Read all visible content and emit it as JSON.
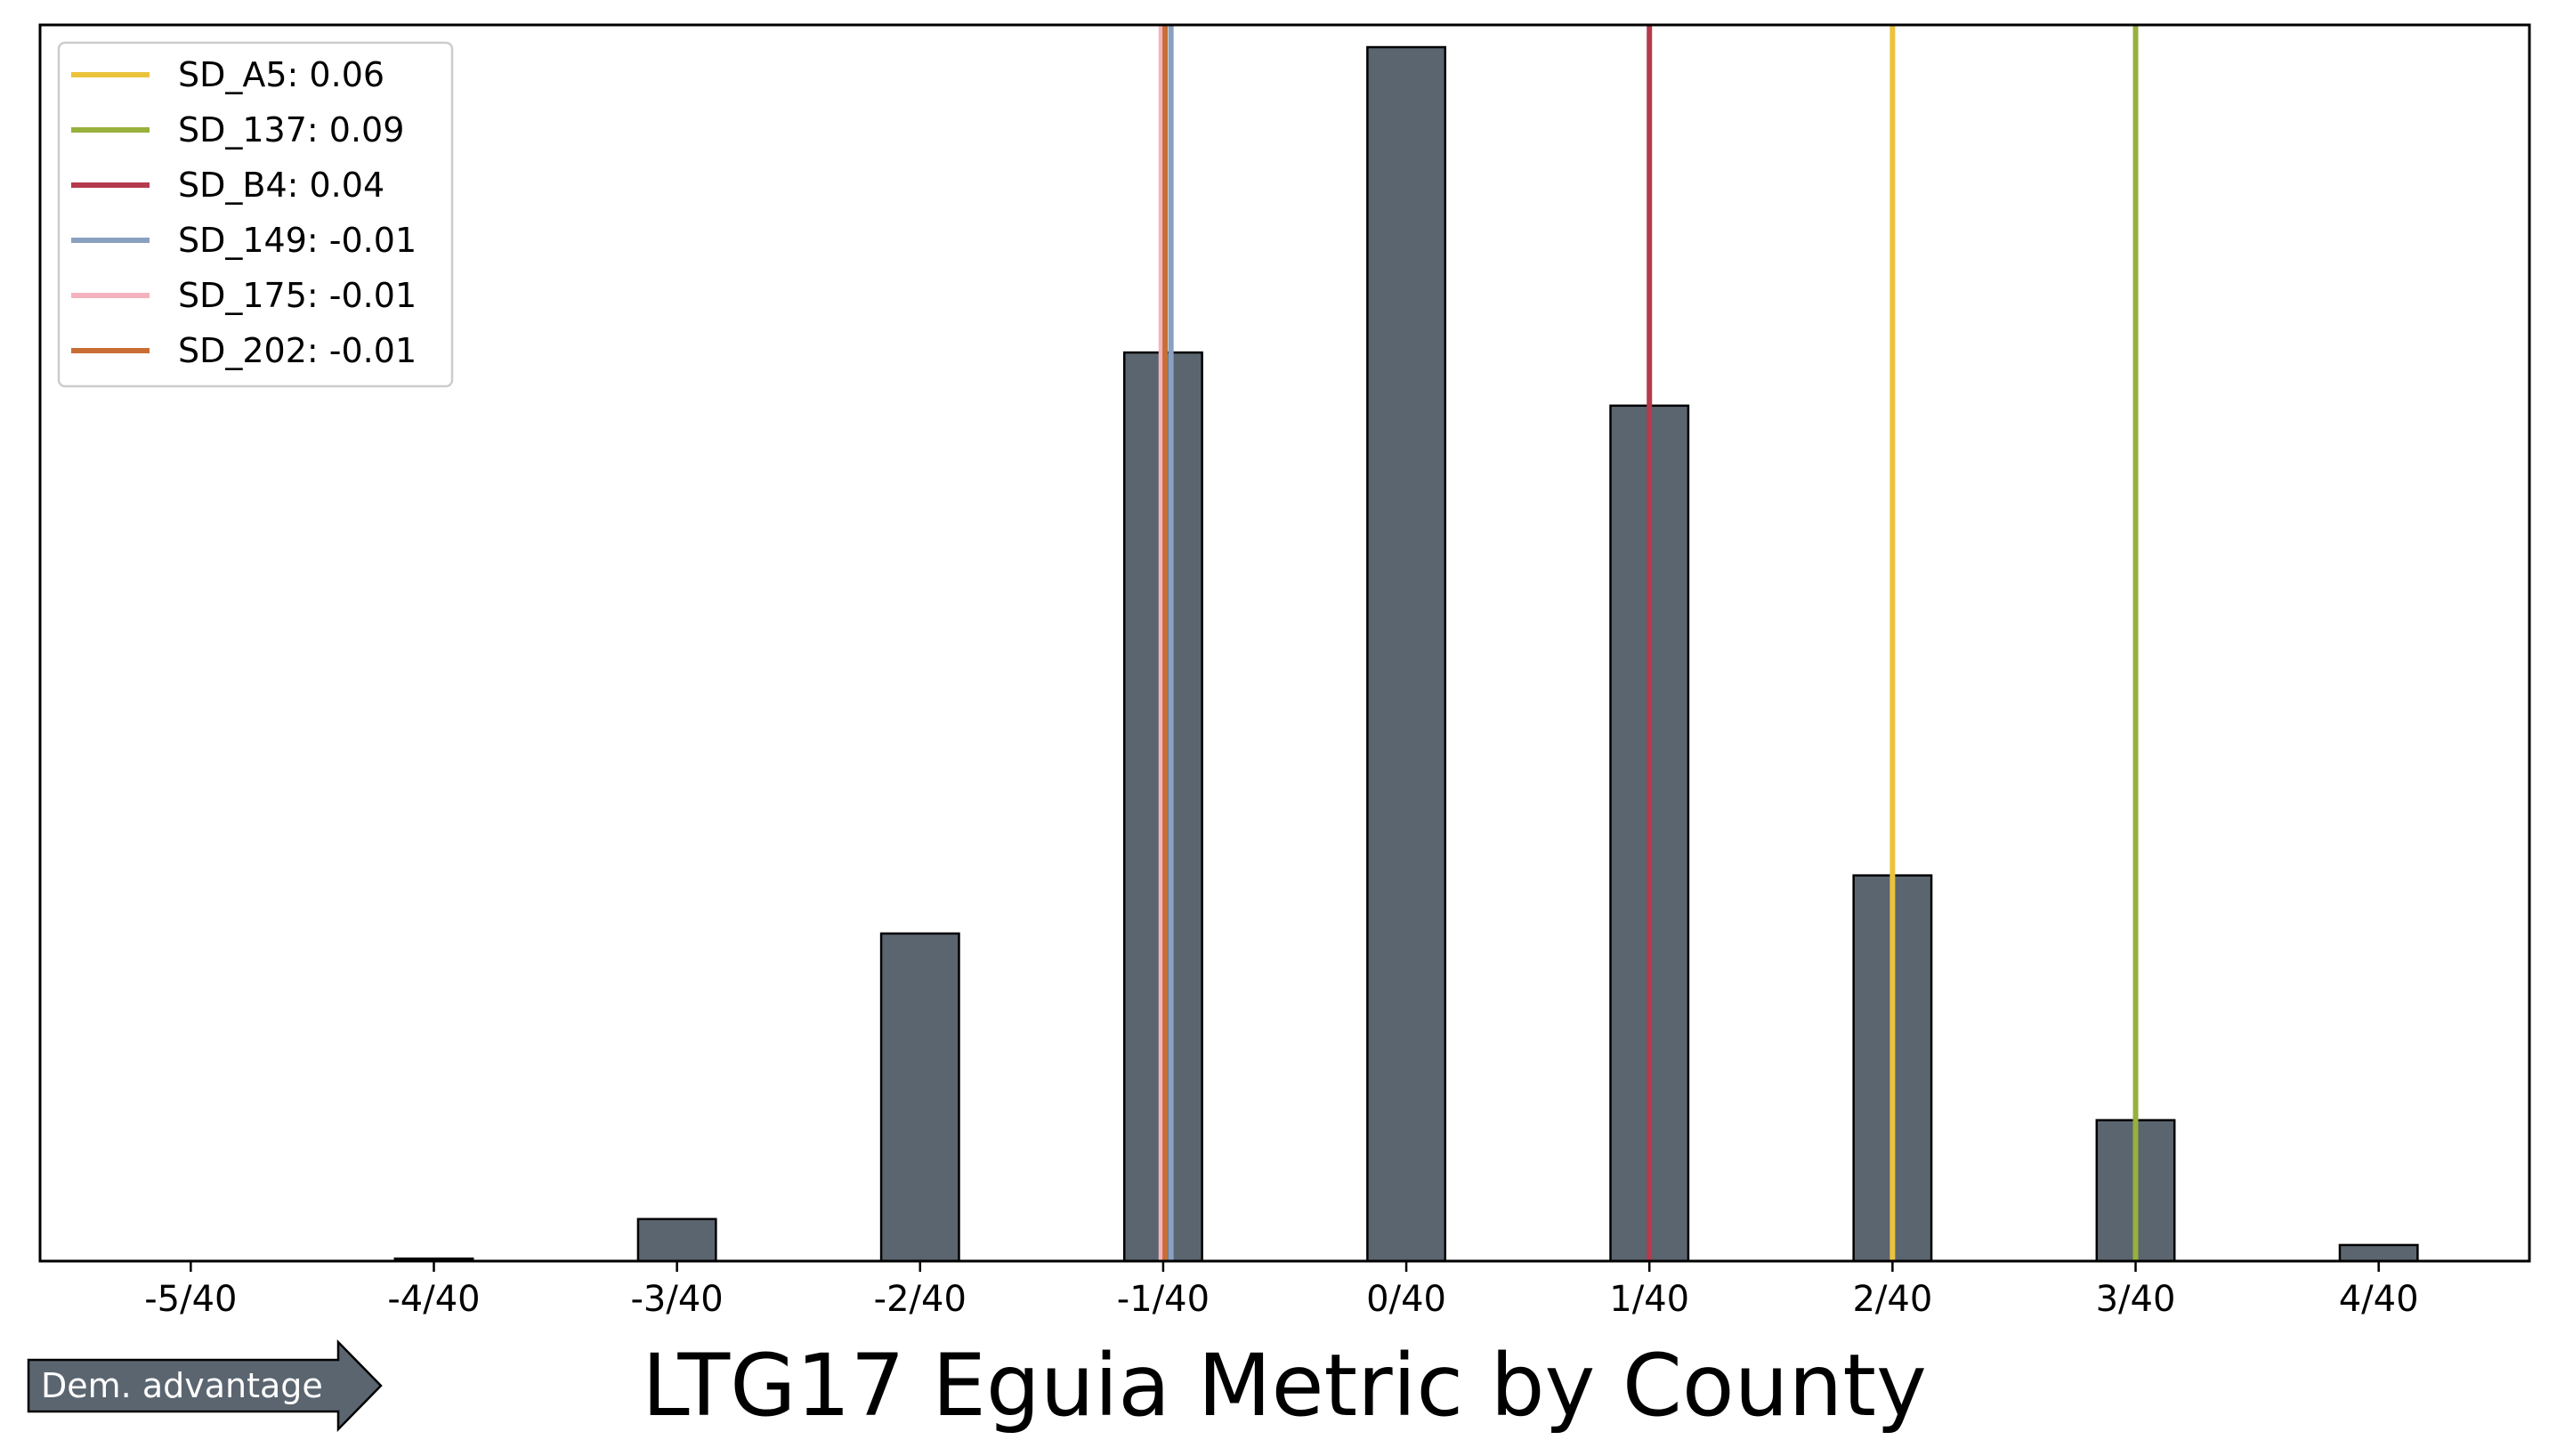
{
  "chart_data": {
    "type": "bar",
    "title": "LTG17 Eguia Metric by County",
    "xlabel": "",
    "ylabel": "",
    "xlim": [
      -0.1405,
      0.1155
    ],
    "ylim": [
      0,
      1.0
    ],
    "x_ticks": [
      -0.125,
      -0.1,
      -0.075,
      -0.05,
      -0.025,
      0.0,
      0.025,
      0.05,
      0.075,
      0.1
    ],
    "x_tick_labels": [
      "-5/40",
      "-4/40",
      "-3/40",
      "-2/40",
      "-1/40",
      "0/40",
      "1/40",
      "2/40",
      "3/40",
      "4/40"
    ],
    "bin_width": 0.0125,
    "bar_width_fraction": 0.64,
    "bars": [
      {
        "x": -0.125,
        "value": 0.0
      },
      {
        "x": -0.1125,
        "value": 0.0
      },
      {
        "x": -0.1,
        "value": 0.002
      },
      {
        "x": -0.0875,
        "value": 0.0
      },
      {
        "x": -0.075,
        "value": 0.034
      },
      {
        "x": -0.0625,
        "value": 0.0
      },
      {
        "x": -0.05,
        "value": 0.265
      },
      {
        "x": -0.0375,
        "value": 0.0
      },
      {
        "x": -0.025,
        "value": 0.735
      },
      {
        "x": -0.0125,
        "value": 0.0
      },
      {
        "x": 0.0,
        "value": 0.982
      },
      {
        "x": 0.0125,
        "value": 0.0
      },
      {
        "x": 0.025,
        "value": 0.692
      },
      {
        "x": 0.0375,
        "value": 0.0
      },
      {
        "x": 0.05,
        "value": 0.312
      },
      {
        "x": 0.0625,
        "value": 0.0
      },
      {
        "x": 0.075,
        "value": 0.114
      },
      {
        "x": 0.0875,
        "value": 0.0
      },
      {
        "x": 0.1,
        "value": 0.013
      }
    ],
    "bar_color": "#5a6570",
    "vlines": [
      {
        "name": "SD_A5: 0.06",
        "x": 0.05,
        "color": "#ebc23c"
      },
      {
        "name": "SD_137: 0.09",
        "x": 0.075,
        "color": "#98b03c"
      },
      {
        "name": "SD_B4: 0.04",
        "x": 0.025,
        "color": "#b43a4c"
      },
      {
        "name": "SD_149: -0.01",
        "x": -0.0242,
        "color": "#8aa0c0"
      },
      {
        "name": "SD_175: -0.01",
        "x": -0.0252,
        "color": "#f4b3bf"
      },
      {
        "name": "SD_202: -0.01",
        "x": -0.0248,
        "color": "#c86e34"
      }
    ],
    "legend_position": "upper-left",
    "grid": false,
    "annotation": {
      "text": "Dem. advantage",
      "color": "#5a6570"
    }
  }
}
